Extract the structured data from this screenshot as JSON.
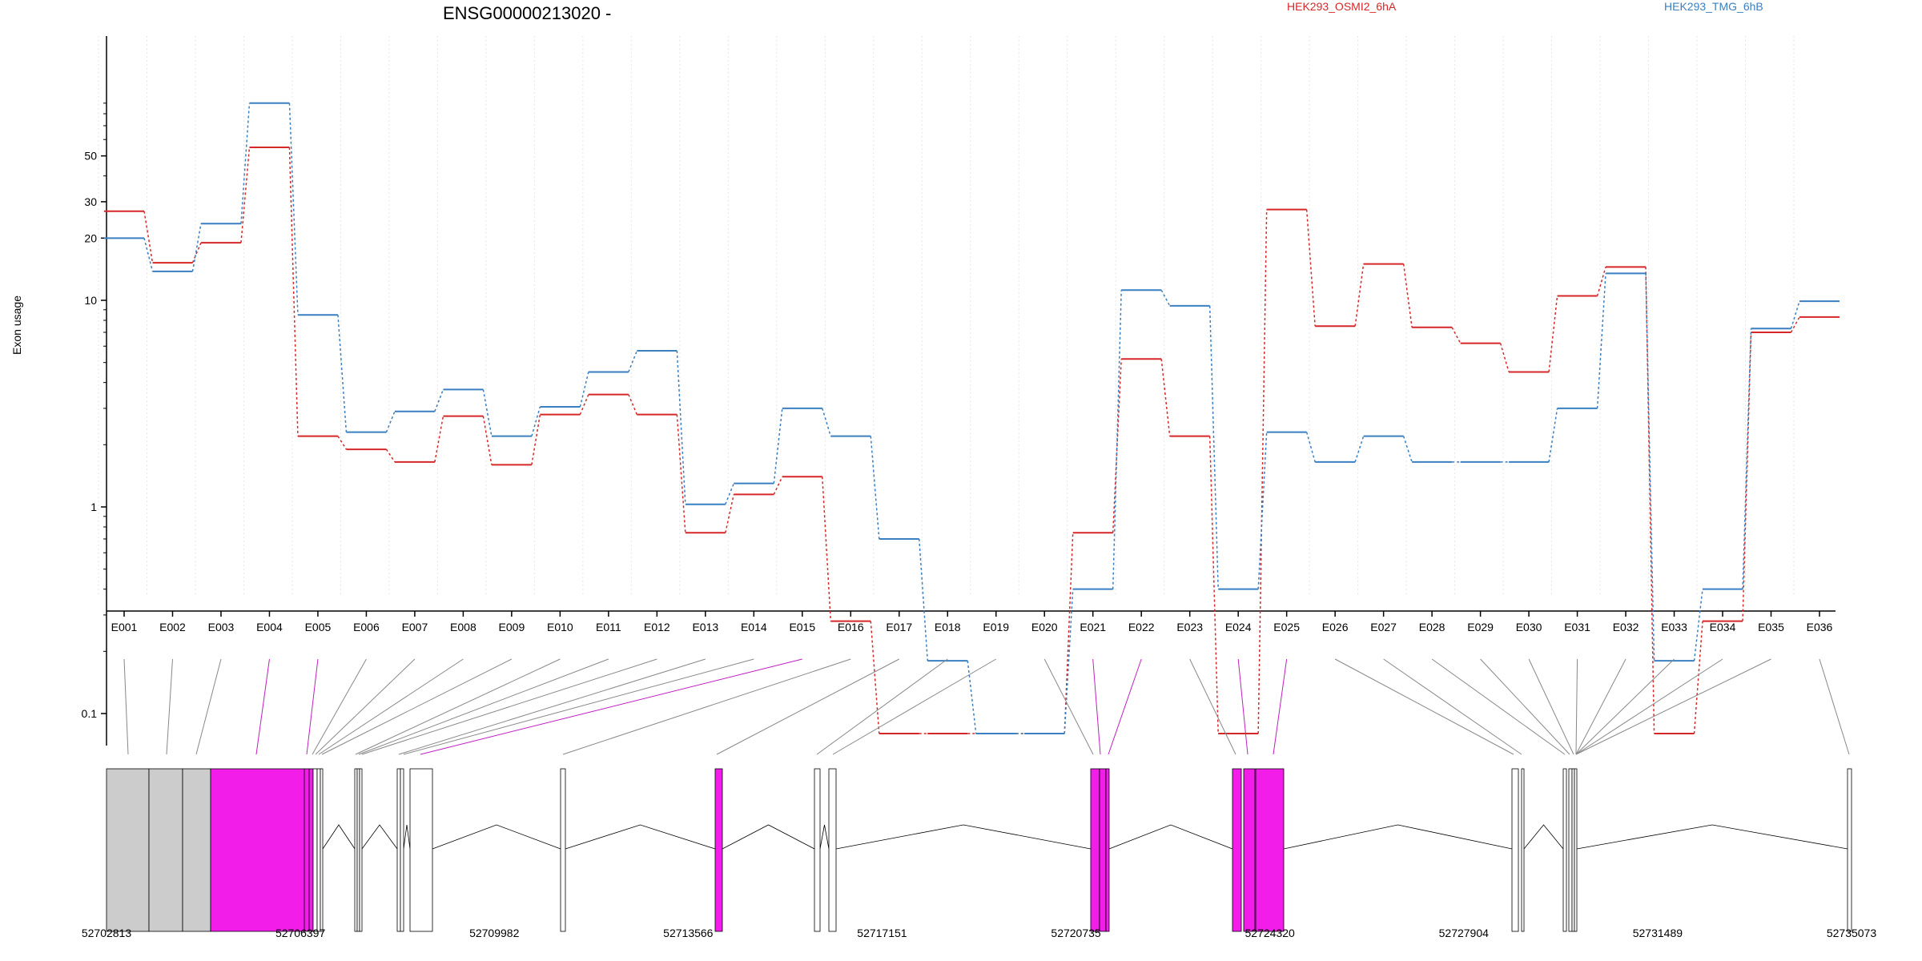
{
  "chart_data": {
    "type": "line",
    "title": "ENSG00000213020 -",
    "ylabel": "Exon usage",
    "yscale": "log",
    "ylim": [
      0.07,
      120
    ],
    "yticks": [
      0.1,
      1,
      10,
      20,
      30,
      50
    ],
    "ytick_labels": [
      "0.1",
      "1",
      "10",
      "20",
      "30",
      "50"
    ],
    "categories": [
      "E001",
      "E002",
      "E003",
      "E004",
      "E005",
      "E006",
      "E007",
      "E008",
      "E009",
      "E010",
      "E011",
      "E012",
      "E013",
      "E014",
      "E015",
      "E016",
      "E017",
      "E018",
      "E019",
      "E020",
      "E021",
      "E022",
      "E023",
      "E024",
      "E025",
      "E026",
      "E027",
      "E028",
      "E029",
      "E030",
      "E031",
      "E032",
      "E033",
      "E034",
      "E035",
      "E036"
    ],
    "series": [
      {
        "name": "HEK293_OSMI2_6hA",
        "color": "#d62728",
        "values": [
          27,
          15.2,
          19,
          55,
          2.2,
          1.9,
          1.65,
          2.75,
          1.6,
          2.8,
          3.5,
          2.8,
          0.75,
          1.15,
          1.4,
          0.28,
          0.08,
          0.08,
          0.08,
          0.08,
          0.75,
          5.2,
          2.2,
          0.08,
          27.5,
          7.5,
          15,
          7.4,
          6.2,
          4.5,
          10.5,
          14.5,
          0.08,
          0.28,
          7,
          8.3
        ]
      },
      {
        "name": "HEK293_TMG_6hB",
        "color": "#3a7fc0",
        "values": [
          20,
          13.8,
          23.5,
          90,
          8.5,
          2.3,
          2.9,
          3.7,
          2.2,
          3.05,
          4.5,
          5.7,
          1.03,
          1.3,
          3,
          2.2,
          0.7,
          0.18,
          0.08,
          0.08,
          0.4,
          11.2,
          9.4,
          0.4,
          2.3,
          1.65,
          2.2,
          1.65,
          1.65,
          1.65,
          3,
          13.5,
          0.18,
          0.4,
          7.3,
          9.9
        ]
      }
    ],
    "legend_placement": "top-right",
    "grid": "vertical-dotted",
    "gene_model": {
      "coordinate_labels": [
        "52702813",
        "52706397",
        "52709982",
        "52713566",
        "52717151",
        "52720735",
        "52724320",
        "52727904",
        "52731489",
        "52735073"
      ],
      "exon_colors": {
        "default": "#ffffff",
        "constitutive": "#cccccc",
        "significant": "#f21de8"
      },
      "exon_highlight": [
        "constitutive",
        "constitutive",
        "constitutive",
        "significant",
        "significant",
        "default",
        "default",
        "default",
        "default",
        "default",
        "default",
        "default",
        "default",
        "default",
        "significant",
        "default",
        "default",
        "default",
        "default",
        "default",
        "significant",
        "significant",
        "default",
        "significant",
        "significant",
        "default",
        "default",
        "default",
        "default",
        "default",
        "default",
        "default",
        "default",
        "default",
        "default",
        "default"
      ]
    }
  }
}
